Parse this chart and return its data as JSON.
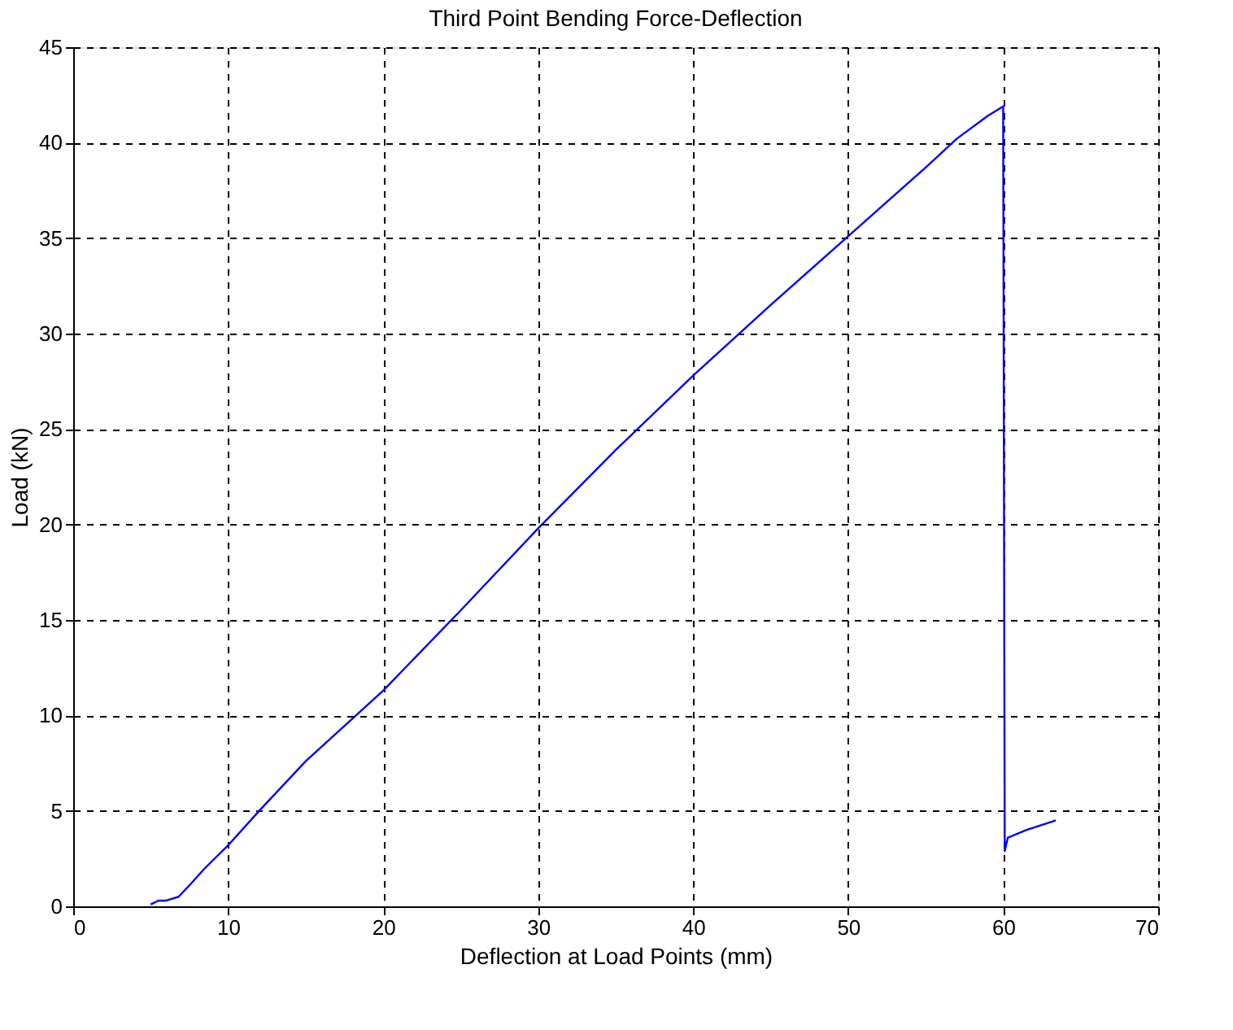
{
  "chart_data": {
    "type": "line",
    "title": "Third Point Bending Force-Deflection",
    "xlabel": "Deflection at Load Points (mm)",
    "ylabel": "Load (kN)",
    "x": [
      5.0,
      5.5,
      6.0,
      6.8,
      7.5,
      8.5,
      10,
      12,
      15,
      20,
      25,
      30,
      35,
      40,
      45,
      50,
      55,
      57,
      59,
      60.0,
      60.1,
      60.3,
      61.5,
      63.4
    ],
    "series": [
      {
        "color": "#0000ff",
        "values": [
          0.1,
          0.3,
          0.3,
          0.5,
          1.1,
          2.0,
          3.2,
          5.0,
          7.6,
          11.3,
          15.5,
          19.8,
          23.9,
          27.8,
          31.5,
          35.1,
          38.7,
          40.2,
          41.4,
          41.9,
          2.9,
          3.6,
          4.0,
          4.5
        ]
      }
    ],
    "xlim": [
      0,
      70
    ],
    "xticks": [
      0,
      10,
      20,
      30,
      40,
      50,
      60,
      70
    ],
    "ylim": [
      0,
      45
    ],
    "yticks": [
      0,
      5,
      10,
      15,
      20,
      25,
      30,
      35,
      40,
      45
    ],
    "grid": true,
    "marker": "none",
    "line_style": "solid"
  }
}
